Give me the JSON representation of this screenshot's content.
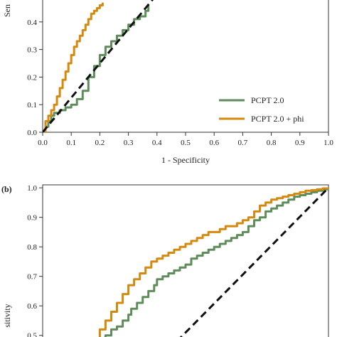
{
  "colors": {
    "pcpt": "#5e8c5a",
    "pcpt_phi": "#d4890f",
    "reference": "#111111",
    "axis": "#333333"
  },
  "chart_data": [
    {
      "panel_label": "",
      "type": "line",
      "xlabel": "1 - Specificity",
      "ylabel": "Sen",
      "xlim": [
        0.0,
        1.0
      ],
      "ylim": [
        0.0,
        0.5
      ],
      "x_ticks": [
        "0.0",
        "0.1",
        "0.2",
        "0.3",
        "0.4",
        "0.5",
        "0.6",
        "0.7",
        "0.8",
        "0.9",
        "1.0"
      ],
      "y_ticks": [
        "0.0",
        "0.1",
        "0.2",
        "0.3",
        "0.4"
      ],
      "legend": {
        "placement": "bottom-right",
        "entries": [
          "PCPT 2.0",
          "PCPT 2.0 + phi"
        ]
      },
      "series": [
        {
          "name": "PCPT 2.0",
          "x": [
            0.0,
            0.01,
            0.02,
            0.03,
            0.04,
            0.06,
            0.08,
            0.1,
            0.12,
            0.14,
            0.16,
            0.18,
            0.2,
            0.22,
            0.24,
            0.26,
            0.28,
            0.3,
            0.32,
            0.34,
            0.36,
            0.37
          ],
          "y": [
            0.0,
            0.02,
            0.04,
            0.06,
            0.07,
            0.08,
            0.09,
            0.1,
            0.12,
            0.15,
            0.2,
            0.24,
            0.28,
            0.31,
            0.33,
            0.35,
            0.37,
            0.39,
            0.41,
            0.42,
            0.44,
            0.46
          ]
        },
        {
          "name": "PCPT 2.0 + phi",
          "x": [
            0.0,
            0.01,
            0.02,
            0.03,
            0.04,
            0.05,
            0.06,
            0.07,
            0.08,
            0.09,
            0.1,
            0.11,
            0.12,
            0.13,
            0.14,
            0.15,
            0.16,
            0.17,
            0.18,
            0.19,
            0.2,
            0.21
          ],
          "y": [
            0.0,
            0.04,
            0.06,
            0.08,
            0.1,
            0.13,
            0.16,
            0.19,
            0.22,
            0.25,
            0.28,
            0.31,
            0.33,
            0.35,
            0.37,
            0.39,
            0.41,
            0.43,
            0.44,
            0.45,
            0.46,
            0.47
          ]
        },
        {
          "name": "",
          "style": "dashed",
          "x": [
            0.0,
            0.4
          ],
          "y": [
            0.0,
            0.5
          ]
        }
      ]
    },
    {
      "panel_label": "(b)",
      "type": "line",
      "xlabel": "",
      "ylabel": "sitivity",
      "xlim": [
        0.0,
        1.0
      ],
      "ylim": [
        0.48,
        1.01
      ],
      "x_ticks": [],
      "y_ticks": [
        "0.5",
        "0.6",
        "0.7",
        "0.8",
        "0.9",
        "1.0"
      ],
      "series": [
        {
          "name": "PCPT 2.0",
          "x": [
            0.2,
            0.21,
            0.22,
            0.24,
            0.26,
            0.28,
            0.3,
            0.31,
            0.33,
            0.35,
            0.37,
            0.39,
            0.4,
            0.42,
            0.44,
            0.46,
            0.48,
            0.5,
            0.52,
            0.54,
            0.56,
            0.58,
            0.6,
            0.62,
            0.64,
            0.66,
            0.68,
            0.7,
            0.72,
            0.74,
            0.76,
            0.78,
            0.8,
            0.82,
            0.84,
            0.86,
            0.88,
            0.9,
            0.92,
            0.94,
            0.96,
            0.98,
            1.0
          ],
          "y": [
            0.47,
            0.48,
            0.5,
            0.52,
            0.53,
            0.55,
            0.57,
            0.59,
            0.61,
            0.63,
            0.65,
            0.67,
            0.69,
            0.7,
            0.71,
            0.72,
            0.73,
            0.74,
            0.76,
            0.77,
            0.78,
            0.79,
            0.8,
            0.81,
            0.82,
            0.83,
            0.84,
            0.85,
            0.87,
            0.89,
            0.9,
            0.92,
            0.93,
            0.94,
            0.95,
            0.96,
            0.97,
            0.975,
            0.98,
            0.985,
            0.99,
            0.995,
            1.0
          ]
        },
        {
          "name": "PCPT 2.0 + phi",
          "x": [
            0.16,
            0.18,
            0.2,
            0.22,
            0.24,
            0.26,
            0.28,
            0.3,
            0.32,
            0.34,
            0.36,
            0.38,
            0.4,
            0.42,
            0.44,
            0.46,
            0.48,
            0.5,
            0.52,
            0.54,
            0.56,
            0.58,
            0.6,
            0.62,
            0.64,
            0.66,
            0.68,
            0.7,
            0.72,
            0.74,
            0.76,
            0.78,
            0.8,
            0.82,
            0.84,
            0.86,
            0.88,
            0.9,
            0.92,
            0.94,
            0.96,
            0.98,
            1.0
          ],
          "y": [
            0.47,
            0.49,
            0.52,
            0.55,
            0.58,
            0.61,
            0.64,
            0.67,
            0.69,
            0.71,
            0.73,
            0.75,
            0.76,
            0.77,
            0.78,
            0.79,
            0.8,
            0.81,
            0.82,
            0.83,
            0.84,
            0.85,
            0.85,
            0.86,
            0.87,
            0.87,
            0.88,
            0.89,
            0.9,
            0.92,
            0.94,
            0.95,
            0.96,
            0.965,
            0.97,
            0.975,
            0.98,
            0.985,
            0.99,
            0.992,
            0.995,
            0.998,
            1.0
          ]
        },
        {
          "name": "",
          "style": "dashed",
          "x": [
            0.47,
            1.0
          ],
          "y": [
            0.48,
            1.0
          ]
        }
      ]
    }
  ]
}
